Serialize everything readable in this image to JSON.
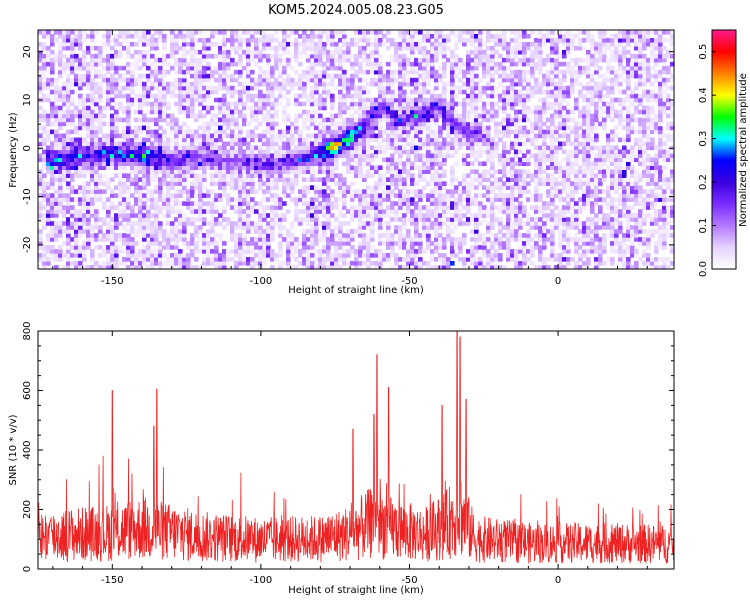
{
  "figure_title": "KOM5.2024.005.08.23.G05",
  "colors": {
    "snr_trace": "#ee2222",
    "axis": "#000000",
    "colormap": [
      "#ffffff",
      "#e6d2ff",
      "#b478ff",
      "#7b2cff",
      "#3a00e0",
      "#0000ff",
      "#00ffff",
      "#00ff00",
      "#ffff00",
      "#ff8000",
      "#ff0000",
      "#ff1b8d"
    ]
  },
  "chart_data": [
    {
      "type": "heatmap",
      "title": "",
      "xlabel": "Height of straight line (km)",
      "ylabel": "Frequency (Hz)",
      "xlim": [
        -175,
        39
      ],
      "ylim": [
        -25,
        24.5
      ],
      "xticks": [
        -150,
        -100,
        -50,
        0
      ],
      "yticks": [
        -20,
        -10,
        0,
        10,
        20
      ],
      "colorbar": {
        "label": "Normalized spectral amplitude",
        "range": [
          0,
          0.55
        ],
        "ticks": [
          "0.0",
          "0.1",
          "0.2",
          "0.3",
          "0.4",
          "0.5"
        ]
      },
      "signal_ridge": [
        {
          "x": -170,
          "y": -2.5,
          "amp": 0.2
        },
        {
          "x": -160,
          "y": -1.5,
          "amp": 0.2
        },
        {
          "x": -150,
          "y": -1.0,
          "amp": 0.22
        },
        {
          "x": -140,
          "y": -1.5,
          "amp": 0.24
        },
        {
          "x": -130,
          "y": -2.5,
          "amp": 0.18
        },
        {
          "x": -120,
          "y": -2.0,
          "amp": 0.12
        },
        {
          "x": -105,
          "y": -3.0,
          "amp": 0.12
        },
        {
          "x": -95,
          "y": -3.5,
          "amp": 0.13
        },
        {
          "x": -85,
          "y": -2.0,
          "amp": 0.16
        },
        {
          "x": -80,
          "y": -1.0,
          "amp": 0.22
        },
        {
          "x": -75,
          "y": 0.5,
          "amp": 0.45
        },
        {
          "x": -68,
          "y": 3.0,
          "amp": 0.25
        },
        {
          "x": -62,
          "y": 7.0,
          "amp": 0.15
        },
        {
          "x": -58,
          "y": 9.0,
          "amp": 0.15
        },
        {
          "x": -55,
          "y": 6.0,
          "amp": 0.12
        },
        {
          "x": -45,
          "y": 7.0,
          "amp": 0.16
        },
        {
          "x": -40,
          "y": 9.0,
          "amp": 0.14
        },
        {
          "x": -35,
          "y": 5.0,
          "amp": 0.15
        },
        {
          "x": -30,
          "y": 3.5,
          "amp": 0.14
        }
      ]
    },
    {
      "type": "line",
      "title": "",
      "xlabel": "Height of straight line (km)",
      "ylabel": "SNR (10 * v/v)",
      "xlim": [
        -175,
        39
      ],
      "ylim": [
        0,
        800
      ],
      "xticks": [
        -150,
        -100,
        -50,
        0
      ],
      "yticks": [
        0,
        200,
        400,
        600,
        800
      ],
      "series": [
        {
          "name": "",
          "baseline_envelope": [
            {
              "x": -175,
              "y": 150
            },
            {
              "x": -150,
              "y": 170
            },
            {
              "x": -140,
              "y": 190
            },
            {
              "x": -130,
              "y": 170
            },
            {
              "x": -120,
              "y": 150
            },
            {
              "x": -100,
              "y": 135
            },
            {
              "x": -80,
              "y": 140
            },
            {
              "x": -70,
              "y": 165
            },
            {
              "x": -62,
              "y": 220
            },
            {
              "x": -55,
              "y": 185
            },
            {
              "x": -45,
              "y": 160
            },
            {
              "x": -38,
              "y": 200
            },
            {
              "x": -33,
              "y": 260
            },
            {
              "x": -28,
              "y": 140
            },
            {
              "x": -10,
              "y": 120
            },
            {
              "x": 10,
              "y": 120
            },
            {
              "x": 39,
              "y": 115
            }
          ],
          "notable_peaks": [
            {
              "x": -150,
              "y": 600
            },
            {
              "x": -135,
              "y": 605
            },
            {
              "x": -136,
              "y": 480
            },
            {
              "x": -69,
              "y": 470
            },
            {
              "x": -62,
              "y": 520
            },
            {
              "x": -61,
              "y": 720
            },
            {
              "x": -57,
              "y": 610
            },
            {
              "x": -39,
              "y": 550
            },
            {
              "x": -34,
              "y": 800
            },
            {
              "x": -33,
              "y": 780
            },
            {
              "x": -31,
              "y": 570
            }
          ]
        }
      ]
    }
  ]
}
